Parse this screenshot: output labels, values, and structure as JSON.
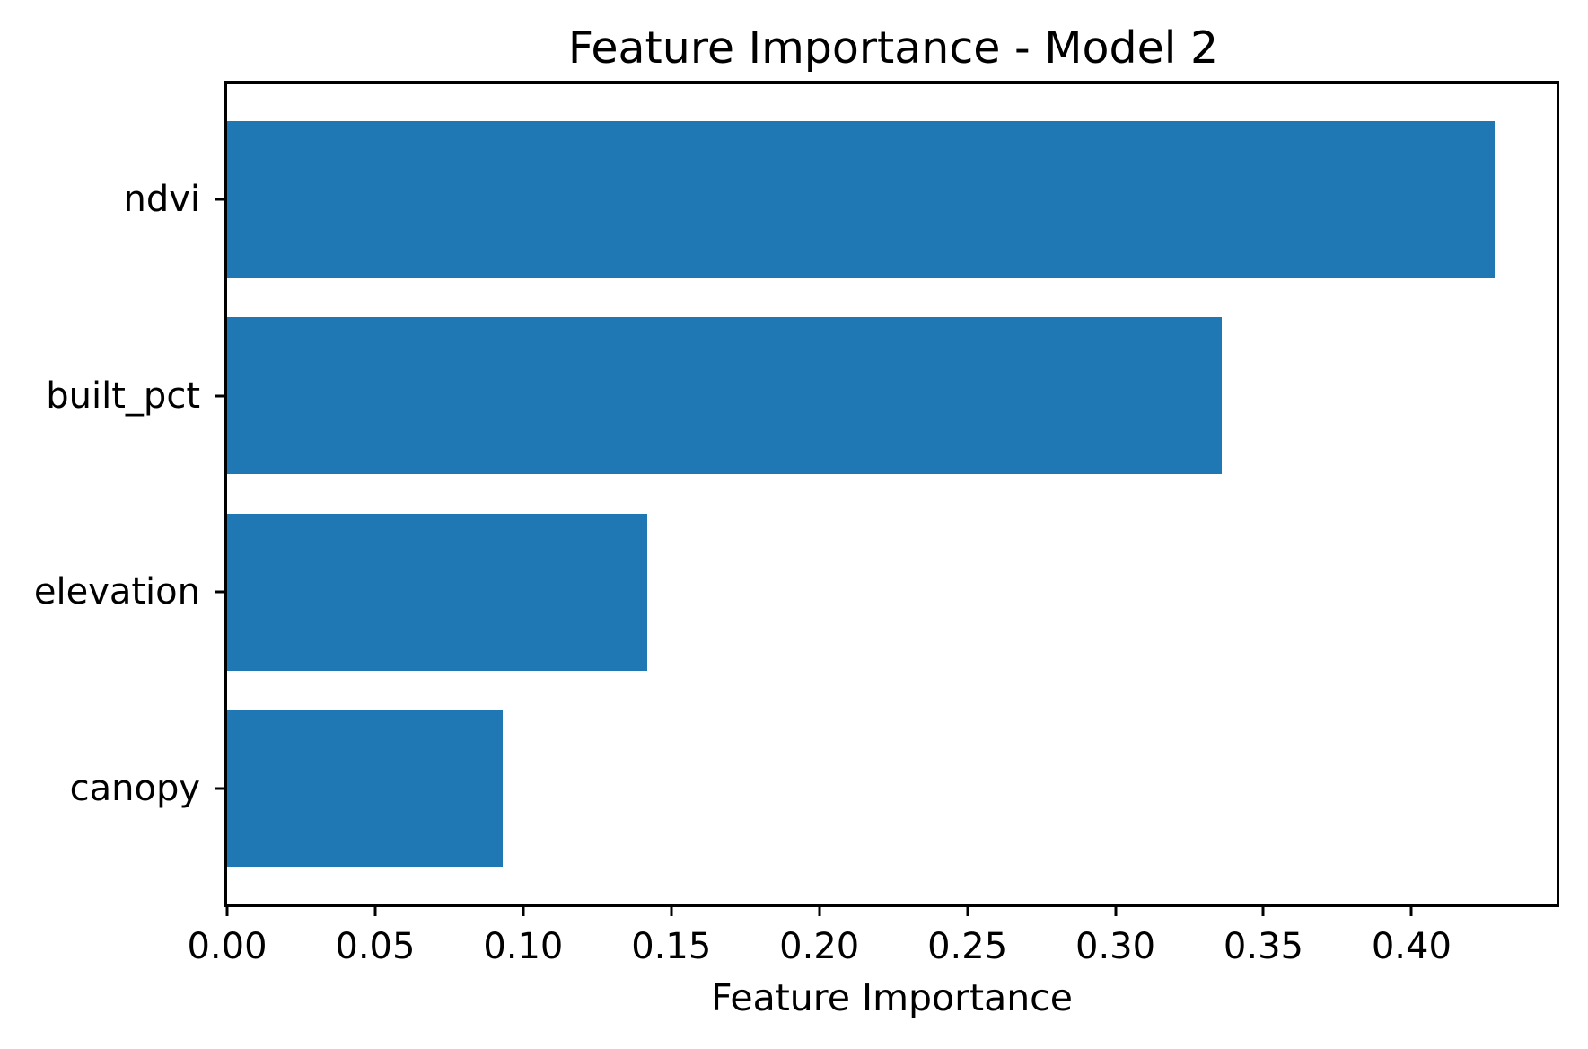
{
  "chart_data": {
    "type": "bar",
    "orientation": "horizontal",
    "title": "Feature Importance - Model 2",
    "xlabel": "Feature Importance",
    "ylabel": "",
    "categories": [
      "ndvi",
      "built_pct",
      "elevation",
      "canopy"
    ],
    "values": [
      0.428,
      0.336,
      0.142,
      0.093
    ],
    "xlim": [
      0,
      0.449
    ],
    "xticks": [
      0.0,
      0.05,
      0.1,
      0.15,
      0.2,
      0.25,
      0.3,
      0.35,
      0.4
    ],
    "xtick_labels": [
      "0.00",
      "0.05",
      "0.10",
      "0.15",
      "0.20",
      "0.25",
      "0.30",
      "0.35",
      "0.40"
    ],
    "bar_color": "#1f77b4",
    "bar_height_fraction": 0.8,
    "axis_margin_fraction": 0.05,
    "grid": false,
    "legend": null,
    "text_color": "#000000",
    "background_color": "#ffffff"
  }
}
